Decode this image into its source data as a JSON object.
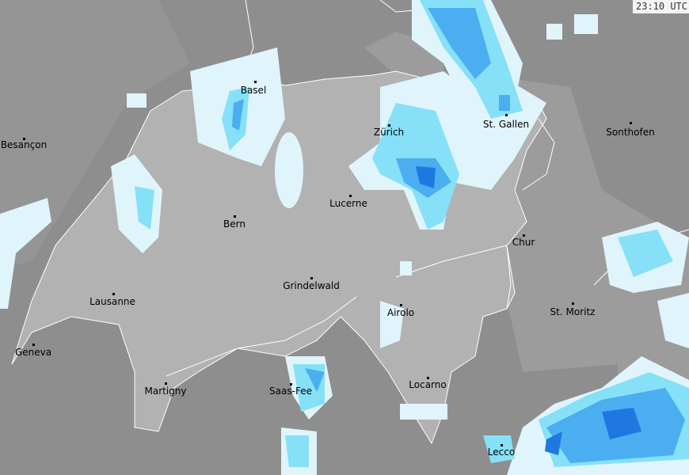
{
  "timestamp": "23:10 UTC",
  "colors": {
    "outside": "#8e8e8e",
    "switzerland": "#b2b2b2",
    "region": "#a0a0a0",
    "border": "#ffffff",
    "precip_light": "#e0f4fb",
    "precip_medium": "#86e0f8",
    "precip_heavy": "#4aaef0",
    "precip_very_heavy": "#1f78e0"
  },
  "cities": [
    {
      "name": "Basel"
    },
    {
      "name": "Besançon"
    },
    {
      "name": "Zürich"
    },
    {
      "name": "St. Gallen"
    },
    {
      "name": "Sonthofen"
    },
    {
      "name": "Lucerne"
    },
    {
      "name": "Bern"
    },
    {
      "name": "Chur"
    },
    {
      "name": "Grindelwald"
    },
    {
      "name": "Lausanne"
    },
    {
      "name": "Airolo"
    },
    {
      "name": "St. Moritz"
    },
    {
      "name": "Geneva"
    },
    {
      "name": "Locarno"
    },
    {
      "name": "Martigny"
    },
    {
      "name": "Saas-Fee"
    },
    {
      "name": "Lecco"
    }
  ]
}
